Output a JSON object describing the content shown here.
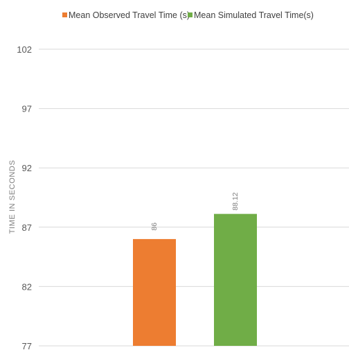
{
  "chart_data": {
    "type": "bar",
    "title": "",
    "xlabel": "",
    "ylabel": "TIME IN SECONDS",
    "ylim": [
      77,
      102
    ],
    "yticks": [
      77,
      82,
      87,
      92,
      97,
      102
    ],
    "grid": true,
    "legend_position": "top",
    "categories": [
      ""
    ],
    "series": [
      {
        "name": "Mean Observed Travel Time (s)",
        "values": [
          86
        ],
        "labels": [
          "86"
        ],
        "color": "#ed7d31"
      },
      {
        "name": "Mean Simulated Travel Time(s)",
        "values": [
          88.12
        ],
        "labels": [
          "88.12"
        ],
        "color": "#70ad47"
      }
    ]
  }
}
